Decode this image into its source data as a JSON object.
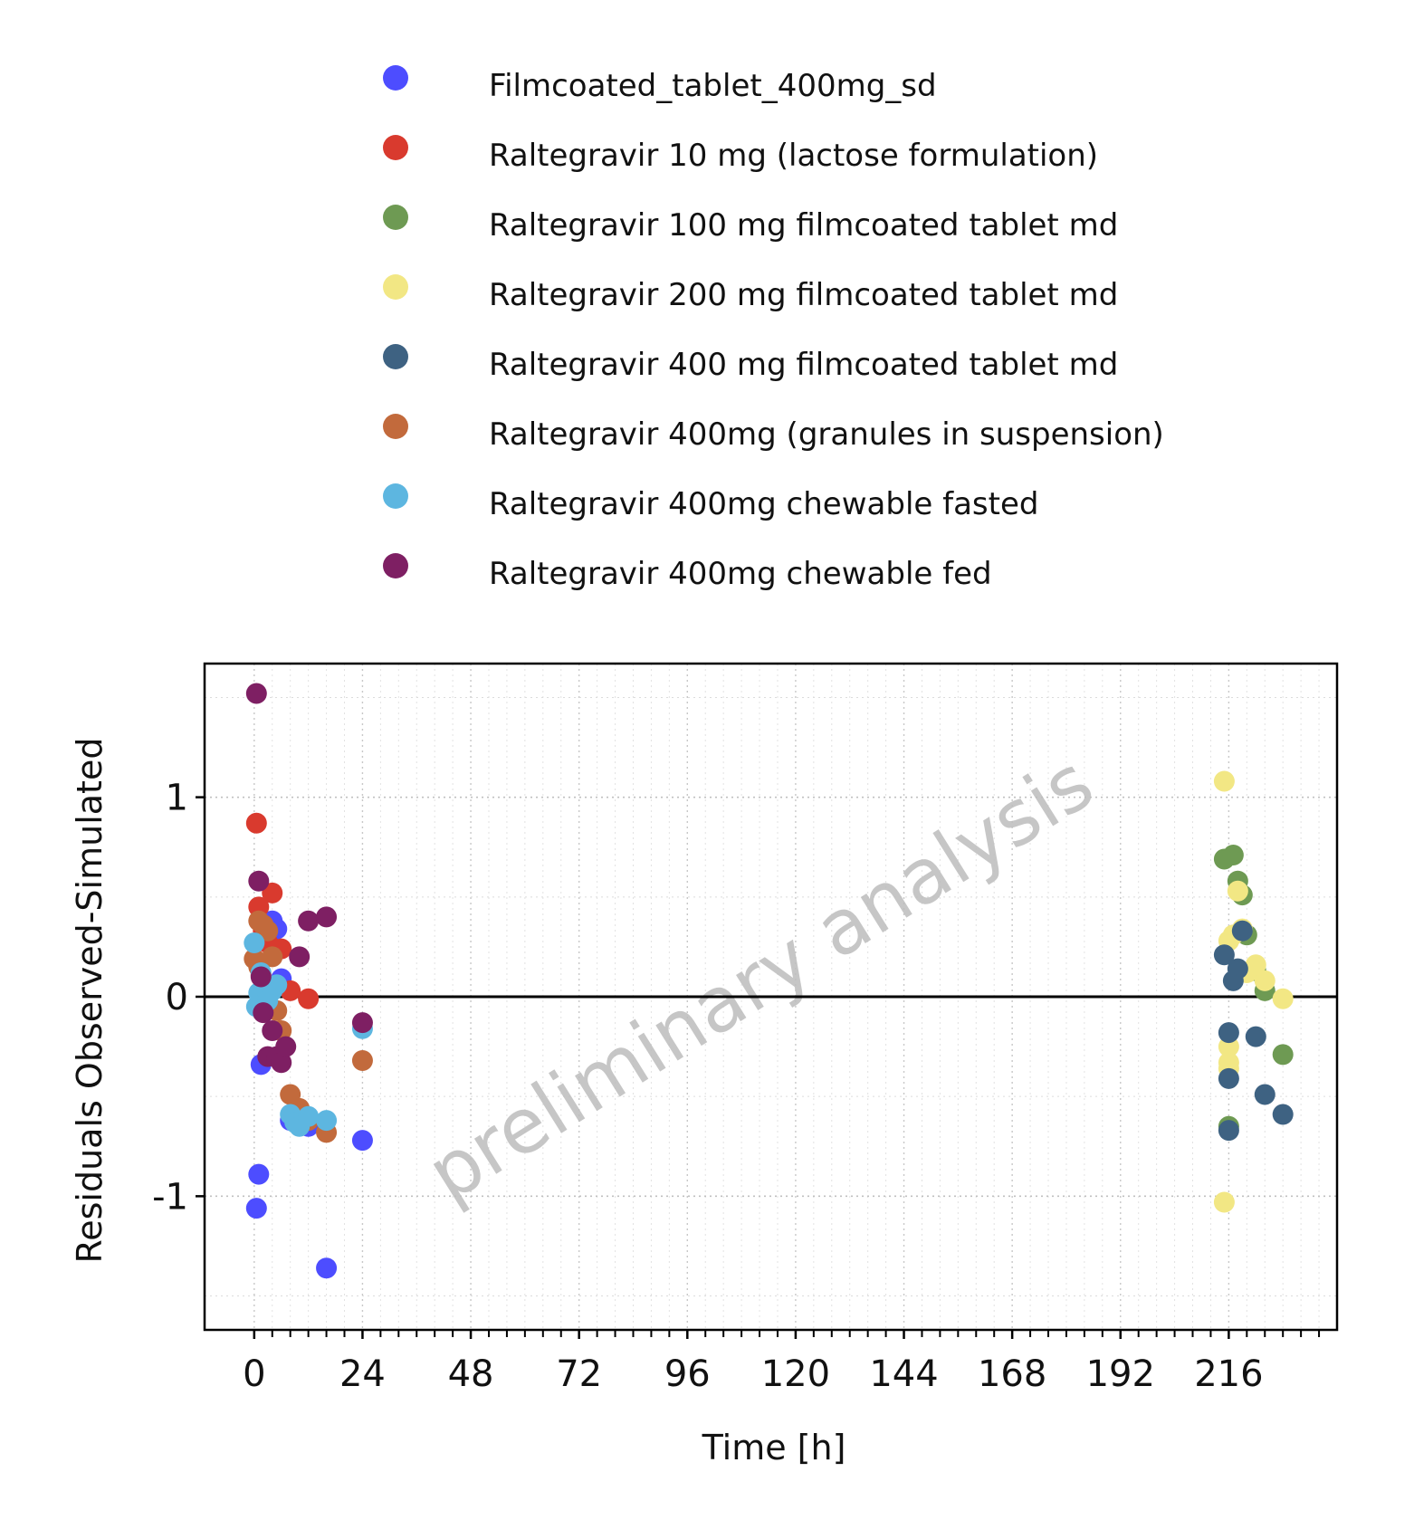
{
  "chart_data": {
    "type": "scatter",
    "watermark": "preliminary analysis",
    "xlabel": "Time [h]",
    "ylabel": "Residuals Observed-Simulated",
    "xlim": [
      -11,
      240
    ],
    "ylim": [
      -1.67,
      1.67
    ],
    "xticks": [
      0,
      24,
      48,
      72,
      96,
      120,
      144,
      168,
      192,
      216
    ],
    "xtick_labels": [
      "0",
      "24",
      "48",
      "72",
      "96",
      "120",
      "144",
      "168",
      "192",
      "216"
    ],
    "yticks": [
      1,
      0,
      -1
    ],
    "ytick_labels": [
      "1",
      "0",
      "-1"
    ],
    "grid": true,
    "legend_position": "top",
    "series": [
      {
        "name": "Filmcoated_tablet_400mg_sd",
        "color": "#4D4DFF",
        "points": [
          [
            0.5,
            -1.06
          ],
          [
            1,
            -0.89
          ],
          [
            1.5,
            -0.34
          ],
          [
            2,
            -0.05
          ],
          [
            3,
            0.37
          ],
          [
            4,
            0.38
          ],
          [
            5,
            0.34
          ],
          [
            6,
            0.09
          ],
          [
            8,
            -0.62
          ],
          [
            10,
            -0.6
          ],
          [
            12,
            -0.65
          ],
          [
            16,
            -1.36
          ],
          [
            24,
            -0.72
          ]
        ]
      },
      {
        "name": "Raltegravir 10 mg (lactose formulation)",
        "color": "#D93A2E",
        "points": [
          [
            0.5,
            0.87
          ],
          [
            1,
            0.45
          ],
          [
            1.5,
            0.11
          ],
          [
            2,
            0.33
          ],
          [
            3,
            0.27
          ],
          [
            4,
            0.52
          ],
          [
            6,
            0.24
          ],
          [
            8,
            0.03
          ],
          [
            12,
            -0.01
          ]
        ]
      },
      {
        "name": "Raltegravir 100 mg filmcoated tablet md",
        "color": "#6E9A53",
        "points": [
          [
            215,
            0.69
          ],
          [
            217,
            0.71
          ],
          [
            218,
            0.58
          ],
          [
            219,
            0.51
          ],
          [
            220,
            0.31
          ],
          [
            222,
            0.13
          ],
          [
            224,
            0.03
          ],
          [
            228,
            -0.29
          ],
          [
            216,
            -0.65
          ]
        ]
      },
      {
        "name": "Raltegravir 200 mg filmcoated tablet md",
        "color": "#F2E784",
        "points": [
          [
            215,
            1.08
          ],
          [
            216,
            0.28
          ],
          [
            217,
            0.31
          ],
          [
            218,
            0.53
          ],
          [
            219,
            0.34
          ],
          [
            220,
            0.12
          ],
          [
            222,
            0.16
          ],
          [
            224,
            0.08
          ],
          [
            228,
            -0.01
          ],
          [
            216,
            -0.25
          ],
          [
            216,
            -0.33
          ],
          [
            216,
            -0.36
          ],
          [
            215,
            -1.03
          ]
        ]
      },
      {
        "name": "Raltegravir 400 mg filmcoated tablet md",
        "color": "#3E6282",
        "points": [
          [
            215,
            0.21
          ],
          [
            216,
            -0.18
          ],
          [
            217,
            0.08
          ],
          [
            218,
            0.14
          ],
          [
            219,
            0.33
          ],
          [
            222,
            -0.2
          ],
          [
            216,
            -0.41
          ],
          [
            216,
            -0.67
          ],
          [
            224,
            -0.49
          ],
          [
            228,
            -0.59
          ]
        ]
      },
      {
        "name": "Raltegravir 400mg (granules in suspension)",
        "color": "#C26A3C",
        "points": [
          [
            0,
            0.19
          ],
          [
            1,
            0.15
          ],
          [
            1,
            0.38
          ],
          [
            2,
            0.36
          ],
          [
            3,
            0.33
          ],
          [
            4,
            0.2
          ],
          [
            5,
            -0.07
          ],
          [
            6,
            -0.17
          ],
          [
            8,
            -0.49
          ],
          [
            10,
            -0.56
          ],
          [
            12,
            -0.62
          ],
          [
            16,
            -0.68
          ],
          [
            24,
            -0.32
          ]
        ]
      },
      {
        "name": "Raltegravir 400mg chewable fasted",
        "color": "#5DB6E0",
        "points": [
          [
            0,
            0.27
          ],
          [
            0.5,
            -0.05
          ],
          [
            1,
            0.02
          ],
          [
            1.5,
            0.12
          ],
          [
            2,
            0.05
          ],
          [
            3,
            -0.02
          ],
          [
            4,
            0.03
          ],
          [
            5,
            0.06
          ],
          [
            8,
            -0.59
          ],
          [
            9,
            -0.63
          ],
          [
            10,
            -0.65
          ],
          [
            12,
            -0.6
          ],
          [
            16,
            -0.62
          ],
          [
            24,
            -0.16
          ]
        ]
      },
      {
        "name": "Raltegravir 400mg chewable fed",
        "color": "#7E1F63",
        "points": [
          [
            0.5,
            1.52
          ],
          [
            1,
            0.58
          ],
          [
            1.5,
            0.1
          ],
          [
            2,
            -0.08
          ],
          [
            3,
            -0.3
          ],
          [
            4,
            -0.17
          ],
          [
            5,
            -0.3
          ],
          [
            6,
            -0.33
          ],
          [
            7,
            -0.25
          ],
          [
            10,
            0.2
          ],
          [
            12,
            0.38
          ],
          [
            16,
            0.4
          ],
          [
            24,
            -0.13
          ]
        ]
      }
    ]
  }
}
